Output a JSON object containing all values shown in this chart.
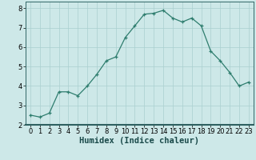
{
  "x": [
    0,
    1,
    2,
    3,
    4,
    5,
    6,
    7,
    8,
    9,
    10,
    11,
    12,
    13,
    14,
    15,
    16,
    17,
    18,
    19,
    20,
    21,
    22,
    23
  ],
  "y": [
    2.5,
    2.4,
    2.6,
    3.7,
    3.7,
    3.5,
    4.0,
    4.6,
    5.3,
    5.5,
    6.5,
    7.1,
    7.7,
    7.75,
    7.9,
    7.5,
    7.3,
    7.5,
    7.1,
    5.8,
    5.3,
    4.7,
    4.0,
    4.2
  ],
  "line_color": "#2e7d6e",
  "marker_color": "#2e7d6e",
  "bg_color": "#cde8e8",
  "grid_color": "#aacfcf",
  "xlabel": "Humidex (Indice chaleur)",
  "xlim": [
    -0.5,
    23.5
  ],
  "ylim": [
    2,
    8.35
  ],
  "yticks": [
    2,
    3,
    4,
    5,
    6,
    7,
    8
  ],
  "xticks": [
    0,
    1,
    2,
    3,
    4,
    5,
    6,
    7,
    8,
    9,
    10,
    11,
    12,
    13,
    14,
    15,
    16,
    17,
    18,
    19,
    20,
    21,
    22,
    23
  ],
  "xlabel_fontsize": 7.5,
  "tick_fontsize": 6.0,
  "spine_color": "#336666"
}
